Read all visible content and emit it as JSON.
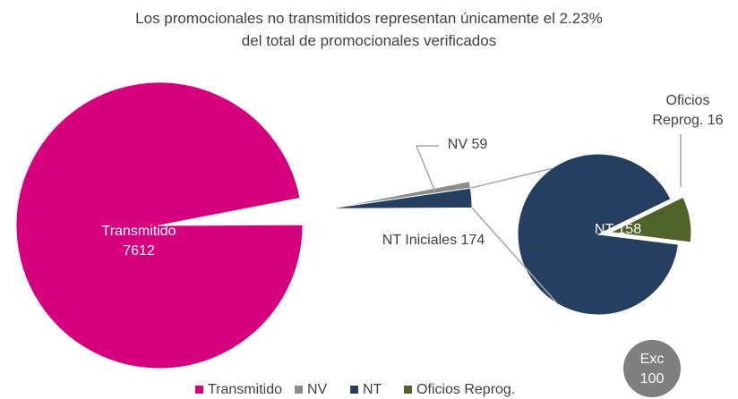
{
  "chart_data": {
    "type": "pie-of-pie",
    "title": [
      "Los promocionales no transmitidos representan únicamente el 2.23%",
      "del total de promocionales verificados"
    ],
    "main": {
      "labels": [
        "Transmitido",
        "NV",
        "NT Iniciales"
      ],
      "values": [
        7612,
        59,
        174
      ],
      "colors": [
        "#d6007f",
        "#8c8c8c",
        "#243f60"
      ]
    },
    "secondary": {
      "labels": [
        "NT",
        "Oficios Reprog."
      ],
      "values": [
        158,
        16
      ],
      "colors": [
        "#243f60",
        "#4f6228"
      ]
    },
    "badge": [
      "Exc",
      "100"
    ]
  }
}
